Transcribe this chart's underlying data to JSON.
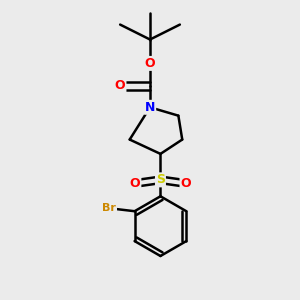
{
  "bg_color": "#ebebeb",
  "bond_color": "#000000",
  "atom_colors": {
    "O": "#ff0000",
    "N": "#0000ff",
    "S": "#cccc00",
    "Br": "#cc8800",
    "C": "#000000"
  },
  "figsize": [
    3.0,
    3.0
  ],
  "dpi": 100
}
